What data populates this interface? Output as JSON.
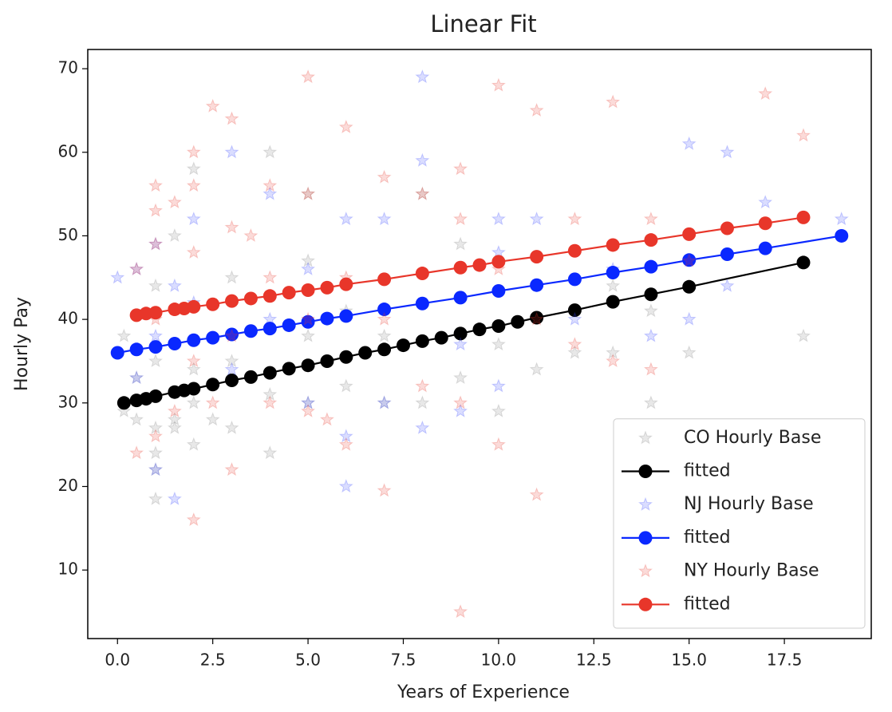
{
  "chart_data": {
    "type": "scatter",
    "title": "Linear Fit",
    "x_label": "Years of Experience",
    "y_label": "Hourly Pay",
    "xlim": [
      -0.78,
      19.78
    ],
    "ylim": [
      1.8,
      72.3
    ],
    "xticks": [
      {
        "value": 0,
        "label": "0.0"
      },
      2.5,
      {
        "value": 5,
        "label": "5.0"
      },
      7.5,
      {
        "value": 10,
        "label": "10.0"
      },
      12.5,
      {
        "value": 15,
        "label": "15.0"
      },
      17.5
    ],
    "yticks": [
      10,
      20,
      30,
      40,
      50,
      60,
      70
    ],
    "legend": "lower right",
    "series": [
      {
        "name": "CO Hourly Base",
        "type": "scatter",
        "color": "#808080",
        "x": [
          0.17,
          0.5,
          0.5,
          1,
          1,
          1,
          1,
          1,
          1.5,
          1.5,
          2,
          2,
          2,
          2,
          2.5,
          3,
          3,
          3,
          4,
          4,
          4,
          5,
          5,
          5,
          5,
          6,
          6,
          7,
          7,
          8,
          8,
          9,
          9,
          10,
          10,
          11,
          12,
          13,
          13,
          14,
          14,
          15,
          18,
          0.17,
          1,
          1.5
        ],
        "values": [
          38,
          28,
          33,
          18.5,
          24,
          27,
          35,
          44,
          28,
          50,
          25,
          30,
          34,
          58,
          28,
          27,
          35,
          45,
          24,
          31,
          60,
          30,
          38,
          55,
          47,
          32,
          41,
          38,
          30,
          30,
          55,
          33,
          49,
          29,
          37,
          34,
          36,
          36,
          44,
          30,
          41,
          36,
          38,
          29,
          22,
          27
        ]
      },
      {
        "name": "fitted",
        "type": "line",
        "color": "#000000",
        "x": [
          0.17,
          0.5,
          0.75,
          1,
          1.5,
          1.75,
          2,
          2.5,
          3,
          3.5,
          4,
          4.5,
          5,
          5.5,
          6,
          6.5,
          7,
          7.5,
          8,
          8.5,
          9,
          9.5,
          10,
          10.5,
          11,
          12,
          13,
          14,
          15,
          18
        ],
        "values": [
          30.0,
          30.3,
          30.5,
          30.8,
          31.3,
          31.5,
          31.7,
          32.2,
          32.7,
          33.1,
          33.6,
          34.1,
          34.5,
          35.0,
          35.5,
          36.0,
          36.4,
          36.9,
          37.4,
          37.8,
          38.3,
          38.8,
          39.2,
          39.7,
          40.2,
          41.1,
          42.1,
          43.0,
          43.9,
          46.8
        ]
      },
      {
        "name": "NJ Hourly Base",
        "type": "scatter",
        "color": "#3040ff",
        "x": [
          0,
          0.5,
          0.5,
          1,
          1,
          1,
          1.5,
          1.5,
          2,
          2,
          3,
          3,
          4,
          4,
          5,
          5,
          6,
          6,
          6,
          7,
          7,
          8,
          8,
          8,
          9,
          9,
          10,
          10,
          10,
          11,
          12,
          13,
          14,
          15,
          15,
          16,
          16,
          17,
          19
        ],
        "values": [
          45,
          46,
          33,
          22,
          38,
          49,
          18.5,
          44,
          42,
          52,
          60,
          34,
          40,
          55,
          30,
          46,
          20,
          26,
          52,
          30,
          52,
          27,
          59,
          69,
          29,
          37,
          32,
          48,
          52,
          52,
          40,
          46,
          38,
          40,
          61,
          44,
          60,
          54,
          52
        ]
      },
      {
        "name": "fitted",
        "type": "line",
        "color": "#0a28ff",
        "x": [
          0,
          0.5,
          1,
          1.5,
          2,
          2.5,
          3,
          3.5,
          4,
          4.5,
          5,
          5.5,
          6,
          7,
          8,
          9,
          10,
          11,
          12,
          13,
          14,
          15,
          16,
          17,
          19
        ],
        "values": [
          36.0,
          36.4,
          36.7,
          37.1,
          37.5,
          37.8,
          38.2,
          38.6,
          38.9,
          39.3,
          39.7,
          40.1,
          40.4,
          41.2,
          41.9,
          42.6,
          43.4,
          44.1,
          44.8,
          45.6,
          46.3,
          47.1,
          47.8,
          48.5,
          50.0
        ]
      },
      {
        "name": "NY Hourly Base",
        "type": "scatter",
        "color": "#e8362a",
        "x": [
          0.5,
          0.5,
          1,
          1,
          1,
          1,
          1,
          1.5,
          1.5,
          2,
          2,
          2,
          2,
          2,
          2.5,
          2.5,
          3,
          3,
          3,
          3,
          3.5,
          4,
          4,
          4,
          5,
          5,
          5,
          5,
          5.5,
          6,
          6,
          6,
          7,
          7,
          7,
          8,
          8,
          9,
          9,
          9,
          9,
          10,
          10,
          10,
          11,
          11,
          11,
          12,
          12,
          13,
          13,
          14,
          14,
          15,
          17,
          18
        ],
        "values": [
          24,
          46,
          26,
          40,
          49,
          53,
          56,
          29,
          54,
          16,
          35,
          48,
          56,
          60,
          65.5,
          30,
          22,
          38,
          51,
          64,
          50,
          30,
          45,
          56,
          29,
          40,
          55,
          69,
          28,
          25,
          45,
          63,
          19.5,
          40,
          57,
          32,
          55,
          5,
          30,
          52,
          58,
          25,
          46,
          68,
          19,
          40,
          65,
          37,
          52,
          35,
          66,
          34,
          52,
          47,
          67,
          62
        ]
      },
      {
        "name": "fitted",
        "type": "line",
        "color": "#e8362a",
        "x": [
          0.5,
          0.75,
          1,
          1.5,
          1.75,
          2,
          2.5,
          3,
          3.5,
          4,
          4.5,
          5,
          5.5,
          6,
          7,
          8,
          9,
          9.5,
          10,
          11,
          12,
          13,
          14,
          15,
          16,
          17,
          18
        ],
        "values": [
          40.5,
          40.7,
          40.8,
          41.2,
          41.3,
          41.5,
          41.8,
          42.2,
          42.5,
          42.8,
          43.2,
          43.5,
          43.8,
          44.2,
          44.8,
          45.5,
          46.2,
          46.5,
          46.9,
          47.5,
          48.2,
          48.9,
          49.5,
          50.2,
          50.9,
          51.5,
          52.2
        ]
      }
    ]
  }
}
